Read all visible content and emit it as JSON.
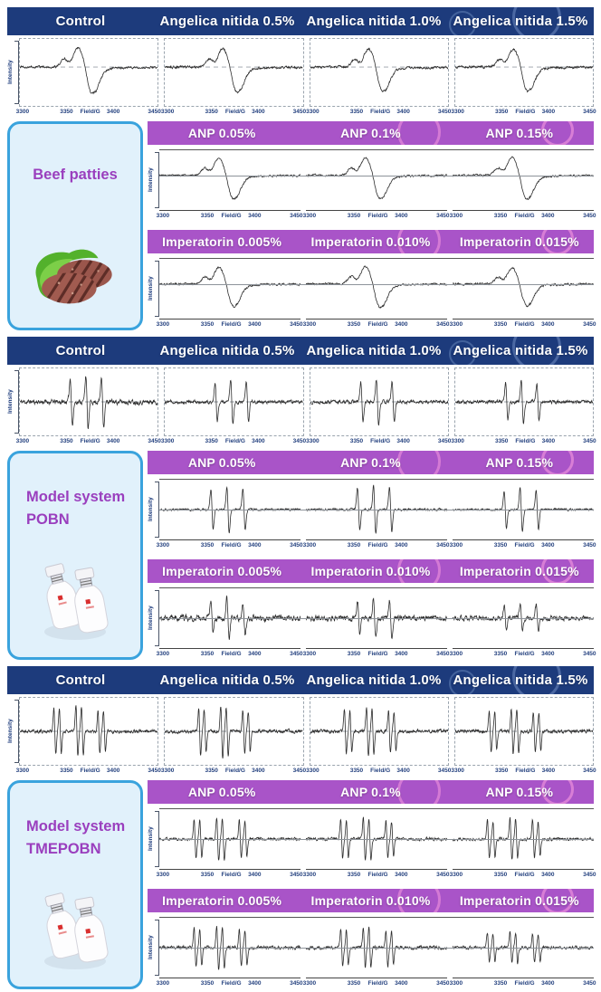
{
  "axis_note": "EPR spectra grid; every panel shares the same field axis",
  "sections": [
    {
      "id": "beef",
      "title_lines": [
        "Beef patties"
      ],
      "top_headers": [
        "Control",
        "Angelica nitida 0.5%",
        "Angelica nitida 1.0%",
        "Angelica nitida 1.5%"
      ],
      "sub_rows": [
        {
          "headers": [
            "ANP 0.05%",
            "ANP 0.1%",
            "ANP 0.15%"
          ]
        },
        {
          "headers": [
            "Imperatorin 0.005%",
            "Imperatorin 0.010%",
            "Imperatorin 0.015%"
          ]
        }
      ]
    },
    {
      "id": "pobn",
      "title_lines": [
        "Model system",
        "POBN"
      ],
      "top_headers": [
        "Control",
        "Angelica nitida 0.5%",
        "Angelica nitida 1.0%",
        "Angelica nitida 1.5%"
      ],
      "sub_rows": [
        {
          "headers": [
            "ANP 0.05%",
            "ANP 0.1%",
            "ANP 0.15%"
          ]
        },
        {
          "headers": [
            "Imperatorin 0.005%",
            "Imperatorin 0.010%",
            "Imperatorin 0.015%"
          ]
        }
      ]
    },
    {
      "id": "tmepobn",
      "title_lines": [
        "Model system",
        "TMEPOBN"
      ],
      "top_headers": [
        "Control",
        "Angelica nitida 0.5%",
        "Angelica nitida 1.0%",
        "Angelica nitida 1.5%"
      ],
      "sub_rows": [
        {
          "headers": [
            "ANP 0.05%",
            "ANP 0.1%",
            "ANP 0.15%"
          ]
        },
        {
          "headers": [
            "Imperatorin 0.005%",
            "Imperatorin 0.010%",
            "Imperatorin 0.015%"
          ]
        }
      ]
    }
  ],
  "colors": {
    "navy_band": "#1d3b7c",
    "purple_band": "#a954c8",
    "card_background": "#e1f1fb",
    "card_border": "#3aa3dd",
    "card_title": "#9a3fbe",
    "trace": "#2c2c2c",
    "tick_text": "#24417f"
  },
  "chart_data": {
    "type": "line",
    "xlabel": "Field/G",
    "ylabel": "Intensity",
    "xrange": [
      3300,
      3450
    ],
    "xticks": [
      "3300",
      "3350",
      "3400",
      "3450"
    ],
    "grid": "dashed baseline on top rows, solid baseline on ANP/Imperatorin rows",
    "legend": "none",
    "panels": [
      {
        "section": "Beef patties",
        "treatment": "Control",
        "lineshape": "broad-derivative",
        "center_G": 3371,
        "positive_peak_G": 3363,
        "negative_peak_G": 3379,
        "amplitude": 1.0,
        "noise": 0.04,
        "seed": 1
      },
      {
        "section": "Beef patties",
        "treatment": "Angelica nitida 0.5%",
        "lineshape": "broad-derivative",
        "center_G": 3371,
        "positive_peak_G": 3363,
        "negative_peak_G": 3379,
        "amplitude": 0.95,
        "noise": 0.045,
        "seed": 2
      },
      {
        "section": "Beef patties",
        "treatment": "Angelica nitida 1.0%",
        "lineshape": "broad-derivative",
        "center_G": 3371,
        "positive_peak_G": 3363,
        "negative_peak_G": 3379,
        "amplitude": 0.93,
        "noise": 0.045,
        "seed": 3
      },
      {
        "section": "Beef patties",
        "treatment": "Angelica nitida 1.5%",
        "lineshape": "broad-derivative",
        "center_G": 3371,
        "positive_peak_G": 3363,
        "negative_peak_G": 3379,
        "amplitude": 0.92,
        "noise": 0.045,
        "seed": 4
      },
      {
        "section": "Beef patties",
        "treatment": "ANP 0.05%",
        "lineshape": "broad-derivative",
        "center_G": 3371,
        "positive_peak_G": 3363,
        "negative_peak_G": 3379,
        "amplitude": 1.0,
        "noise": 0.04,
        "seed": 5
      },
      {
        "section": "Beef patties",
        "treatment": "ANP 0.1%",
        "lineshape": "broad-derivative",
        "center_G": 3371,
        "positive_peak_G": 3363,
        "negative_peak_G": 3379,
        "amplitude": 1.0,
        "noise": 0.04,
        "seed": 6
      },
      {
        "section": "Beef patties",
        "treatment": "ANP 0.15%",
        "lineshape": "broad-derivative",
        "center_G": 3371,
        "positive_peak_G": 3363,
        "negative_peak_G": 3379,
        "amplitude": 1.02,
        "noise": 0.04,
        "seed": 7
      },
      {
        "section": "Beef patties",
        "treatment": "Imperatorin 0.005%",
        "lineshape": "broad-derivative",
        "center_G": 3371,
        "positive_peak_G": 3363,
        "negative_peak_G": 3379,
        "amplitude": 0.95,
        "noise": 0.045,
        "seed": 8
      },
      {
        "section": "Beef patties",
        "treatment": "Imperatorin 0.010%",
        "lineshape": "broad-derivative",
        "center_G": 3371,
        "positive_peak_G": 3363,
        "negative_peak_G": 3379,
        "amplitude": 1.0,
        "noise": 0.04,
        "seed": 9
      },
      {
        "section": "Beef patties",
        "treatment": "Imperatorin 0.015%",
        "lineshape": "broad-derivative",
        "center_G": 3371,
        "positive_peak_G": 3363,
        "negative_peak_G": 3379,
        "amplitude": 0.92,
        "noise": 0.045,
        "seed": 10
      },
      {
        "section": "Model system POBN",
        "treatment": "Control",
        "lineshape": "triplet",
        "lines_G": [
          3356,
          3373,
          3390
        ],
        "amplitude": 1.0,
        "noise": 0.07,
        "seed": 11
      },
      {
        "section": "Model system POBN",
        "treatment": "Angelica nitida 0.5%",
        "lineshape": "triplet",
        "lines_G": [
          3356,
          3373,
          3390
        ],
        "amplitude": 0.85,
        "noise": 0.05,
        "seed": 12
      },
      {
        "section": "Model system POBN",
        "treatment": "Angelica nitida 1.0%",
        "lineshape": "triplet",
        "lines_G": [
          3356,
          3373,
          3390
        ],
        "amplitude": 0.82,
        "noise": 0.05,
        "seed": 13
      },
      {
        "section": "Model system POBN",
        "treatment": "Angelica nitida 1.5%",
        "lineshape": "triplet",
        "lines_G": [
          3356,
          3373,
          3390
        ],
        "amplitude": 0.78,
        "noise": 0.05,
        "seed": 14
      },
      {
        "section": "Model system POBN",
        "treatment": "ANP 0.05%",
        "lineshape": "triplet",
        "lines_G": [
          3356,
          3373,
          3390
        ],
        "amplitude": 0.95,
        "noise": 0.035,
        "seed": 15
      },
      {
        "section": "Model system POBN",
        "treatment": "ANP 0.1%",
        "lineshape": "triplet",
        "lines_G": [
          3356,
          3373,
          3390
        ],
        "amplitude": 1.0,
        "noise": 0.04,
        "seed": 16
      },
      {
        "section": "Model system POBN",
        "treatment": "ANP 0.15%",
        "lineshape": "triplet",
        "lines_G": [
          3356,
          3373,
          3390
        ],
        "amplitude": 0.9,
        "noise": 0.035,
        "seed": 17
      },
      {
        "section": "Model system POBN",
        "treatment": "Imperatorin 0.005%",
        "lineshape": "triplet",
        "lines_G": [
          3356,
          3373,
          3390
        ],
        "amplitude": 0.78,
        "noise": 0.1,
        "seed": 18
      },
      {
        "section": "Model system POBN",
        "treatment": "Imperatorin 0.010%",
        "lineshape": "triplet",
        "lines_G": [
          3356,
          3373,
          3390
        ],
        "amplitude": 0.8,
        "noise": 0.09,
        "seed": 19
      },
      {
        "section": "Model system POBN",
        "treatment": "Imperatorin 0.015%",
        "lineshape": "triplet",
        "lines_G": [
          3356,
          3373,
          3390
        ],
        "amplitude": 0.6,
        "noise": 0.08,
        "seed": 20
      },
      {
        "section": "Model system TMEPOBN",
        "treatment": "Control",
        "lineshape": "triplet-of-doublets",
        "line_pairs_G": [
          [
            3338,
            3344
          ],
          [
            3362,
            3368
          ],
          [
            3386,
            3392
          ]
        ],
        "amplitude": 0.95,
        "noise": 0.05,
        "seed": 21
      },
      {
        "section": "Model system TMEPOBN",
        "treatment": "Angelica nitida 0.5%",
        "lineshape": "triplet-of-doublets",
        "line_pairs_G": [
          [
            3338,
            3344
          ],
          [
            3362,
            3368
          ],
          [
            3386,
            3392
          ]
        ],
        "amplitude": 0.95,
        "noise": 0.05,
        "seed": 22
      },
      {
        "section": "Model system TMEPOBN",
        "treatment": "Angelica nitida 1.0%",
        "lineshape": "triplet-of-doublets",
        "line_pairs_G": [
          [
            3338,
            3344
          ],
          [
            3362,
            3368
          ],
          [
            3386,
            3392
          ]
        ],
        "amplitude": 0.9,
        "noise": 0.05,
        "seed": 23
      },
      {
        "section": "Model system TMEPOBN",
        "treatment": "Angelica nitida 1.5%",
        "lineshape": "triplet-of-doublets",
        "line_pairs_G": [
          [
            3338,
            3344
          ],
          [
            3362,
            3368
          ],
          [
            3386,
            3392
          ]
        ],
        "amplitude": 0.85,
        "noise": 0.05,
        "seed": 24
      },
      {
        "section": "Model system TMEPOBN",
        "treatment": "ANP 0.05%",
        "lineshape": "triplet-of-doublets",
        "line_pairs_G": [
          [
            3338,
            3344
          ],
          [
            3362,
            3368
          ],
          [
            3386,
            3392
          ]
        ],
        "amplitude": 0.92,
        "noise": 0.045,
        "seed": 25
      },
      {
        "section": "Model system TMEPOBN",
        "treatment": "ANP 0.1%",
        "lineshape": "triplet-of-doublets",
        "line_pairs_G": [
          [
            3338,
            3344
          ],
          [
            3362,
            3368
          ],
          [
            3386,
            3392
          ]
        ],
        "amplitude": 0.9,
        "noise": 0.05,
        "seed": 26
      },
      {
        "section": "Model system TMEPOBN",
        "treatment": "ANP 0.15%",
        "lineshape": "triplet-of-doublets",
        "line_pairs_G": [
          [
            3338,
            3344
          ],
          [
            3362,
            3368
          ],
          [
            3386,
            3392
          ]
        ],
        "amplitude": 0.9,
        "noise": 0.05,
        "seed": 27
      },
      {
        "section": "Model system TMEPOBN",
        "treatment": "Imperatorin 0.005%",
        "lineshape": "triplet-of-doublets",
        "line_pairs_G": [
          [
            3338,
            3344
          ],
          [
            3362,
            3368
          ],
          [
            3386,
            3392
          ]
        ],
        "amplitude": 0.88,
        "noise": 0.06,
        "seed": 28
      },
      {
        "section": "Model system TMEPOBN",
        "treatment": "Imperatorin 0.010%",
        "lineshape": "triplet-of-doublets",
        "line_pairs_G": [
          [
            3338,
            3344
          ],
          [
            3362,
            3368
          ],
          [
            3386,
            3392
          ]
        ],
        "amplitude": 0.85,
        "noise": 0.055,
        "seed": 29
      },
      {
        "section": "Model system TMEPOBN",
        "treatment": "Imperatorin 0.015%",
        "lineshape": "triplet-of-doublets",
        "line_pairs_G": [
          [
            3338,
            3344
          ],
          [
            3362,
            3368
          ],
          [
            3386,
            3392
          ]
        ],
        "amplitude": 0.68,
        "noise": 0.05,
        "seed": 30
      }
    ]
  }
}
